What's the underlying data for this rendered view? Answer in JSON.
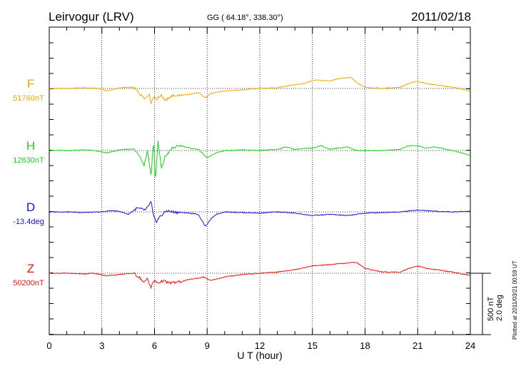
{
  "header": {
    "station": "Leirvogur (LRV)",
    "coords": "GG ( 64.18°, 338.30°)",
    "date": "2011/02/18"
  },
  "side_note": "Plotted at 2011/03/21 00:59 UT",
  "scale": {
    "line1": "500 nT",
    "line2": "2.0 deg"
  },
  "chart_data": {
    "type": "line",
    "xlabel": "U T (hour)",
    "xlim": [
      0,
      24
    ],
    "xticks": [
      "0",
      "3",
      "6",
      "9",
      "12",
      "15",
      "18",
      "21",
      "24"
    ],
    "grid": "dotted vertical every 3 h; dotted baseline per trace",
    "series": [
      {
        "name": "F",
        "baseline": "51760nT",
        "color": "#f0a800",
        "points": [
          [
            0,
            0
          ],
          [
            1,
            0
          ],
          [
            2,
            5
          ],
          [
            2.8,
            0
          ],
          [
            3.3,
            -20
          ],
          [
            4,
            5
          ],
          [
            4.8,
            10
          ],
          [
            5.2,
            -50
          ],
          [
            5.5,
            -80
          ],
          [
            5.7,
            -40
          ],
          [
            5.8,
            -120
          ],
          [
            5.95,
            -60
          ],
          [
            6.1,
            -90
          ],
          [
            6.4,
            -50
          ],
          [
            6.6,
            -100
          ],
          [
            7,
            -60
          ],
          [
            8,
            -50
          ],
          [
            8.5,
            -30
          ],
          [
            8.9,
            -80
          ],
          [
            9.2,
            -40
          ],
          [
            10,
            -20
          ],
          [
            11,
            -10
          ],
          [
            12,
            0
          ],
          [
            13,
            5
          ],
          [
            13.5,
            20
          ],
          [
            14,
            30
          ],
          [
            14.5,
            40
          ],
          [
            15.2,
            70
          ],
          [
            16,
            60
          ],
          [
            16.5,
            80
          ],
          [
            17.2,
            90
          ],
          [
            17.6,
            40
          ],
          [
            18,
            10
          ],
          [
            19,
            0
          ],
          [
            20,
            10
          ],
          [
            20.5,
            40
          ],
          [
            21,
            60
          ],
          [
            21.5,
            40
          ],
          [
            22,
            30
          ],
          [
            23,
            10
          ],
          [
            24,
            -20
          ]
        ]
      },
      {
        "name": "H",
        "baseline": "12630nT",
        "color": "#19d419",
        "points": [
          [
            0,
            0
          ],
          [
            1,
            0
          ],
          [
            2,
            5
          ],
          [
            2.5,
            0
          ],
          [
            3.3,
            -20
          ],
          [
            4,
            5
          ],
          [
            4.8,
            15
          ],
          [
            5.2,
            -50
          ],
          [
            5.4,
            -120
          ],
          [
            5.6,
            0
          ],
          [
            5.8,
            -200
          ],
          [
            5.95,
            80
          ],
          [
            6.05,
            -250
          ],
          [
            6.2,
            70
          ],
          [
            6.4,
            -150
          ],
          [
            6.6,
            -50
          ],
          [
            7,
            20
          ],
          [
            7.5,
            40
          ],
          [
            8,
            20
          ],
          [
            8.5,
            10
          ],
          [
            9,
            -60
          ],
          [
            9.5,
            -20
          ],
          [
            10,
            0
          ],
          [
            11,
            5
          ],
          [
            12,
            0
          ],
          [
            13,
            10
          ],
          [
            13.5,
            30
          ],
          [
            14,
            10
          ],
          [
            15,
            20
          ],
          [
            15.5,
            40
          ],
          [
            16,
            10
          ],
          [
            17,
            30
          ],
          [
            17.5,
            0
          ],
          [
            18,
            0
          ],
          [
            19,
            0
          ],
          [
            20,
            10
          ],
          [
            20.5,
            40
          ],
          [
            21,
            40
          ],
          [
            21.5,
            20
          ],
          [
            22,
            30
          ],
          [
            23,
            0
          ],
          [
            24,
            -40
          ]
        ]
      },
      {
        "name": "D",
        "baseline": "-13.4deg",
        "color": "#1414d4",
        "points": [
          [
            0,
            0
          ],
          [
            1,
            0
          ],
          [
            2,
            -5
          ],
          [
            3,
            0
          ],
          [
            3.5,
            10
          ],
          [
            4,
            5
          ],
          [
            4.5,
            -20
          ],
          [
            5,
            30
          ],
          [
            5.5,
            15
          ],
          [
            5.8,
            80
          ],
          [
            5.95,
            -40
          ],
          [
            6.1,
            -80
          ],
          [
            6.3,
            -40
          ],
          [
            6.7,
            10
          ],
          [
            7,
            0
          ],
          [
            8,
            -10
          ],
          [
            8.5,
            -20
          ],
          [
            8.9,
            -120
          ],
          [
            9.2,
            -60
          ],
          [
            9.5,
            -20
          ],
          [
            10,
            0
          ],
          [
            11,
            -5
          ],
          [
            12,
            -10
          ],
          [
            13,
            0
          ],
          [
            14,
            -10
          ],
          [
            15,
            -30
          ],
          [
            16,
            -20
          ],
          [
            17,
            -30
          ],
          [
            18,
            -10
          ],
          [
            19,
            -5
          ],
          [
            20,
            0
          ],
          [
            21,
            15
          ],
          [
            22,
            5
          ],
          [
            23,
            0
          ],
          [
            24,
            5
          ]
        ]
      },
      {
        "name": "Z",
        "baseline": "50200nT",
        "color": "#e81414",
        "points": [
          [
            0,
            0
          ],
          [
            1,
            0
          ],
          [
            2,
            -5
          ],
          [
            2.5,
            0
          ],
          [
            3.3,
            -20
          ],
          [
            4,
            -10
          ],
          [
            4.8,
            0
          ],
          [
            5.2,
            -40
          ],
          [
            5.4,
            -80
          ],
          [
            5.6,
            -40
          ],
          [
            5.8,
            -120
          ],
          [
            5.95,
            -60
          ],
          [
            6.2,
            -80
          ],
          [
            6.5,
            -60
          ],
          [
            6.8,
            -80
          ],
          [
            7.5,
            -70
          ],
          [
            8,
            -50
          ],
          [
            8.5,
            -40
          ],
          [
            8.8,
            -30
          ],
          [
            9.2,
            -60
          ],
          [
            10,
            -30
          ],
          [
            11,
            -10
          ],
          [
            12,
            0
          ],
          [
            13,
            10
          ],
          [
            13.5,
            20
          ],
          [
            14,
            30
          ],
          [
            15,
            60
          ],
          [
            16,
            70
          ],
          [
            17.5,
            90
          ],
          [
            18,
            40
          ],
          [
            19,
            10
          ],
          [
            20,
            10
          ],
          [
            20.5,
            40
          ],
          [
            21,
            60
          ],
          [
            21.5,
            40
          ],
          [
            22,
            30
          ],
          [
            23,
            10
          ],
          [
            24,
            -20
          ]
        ]
      }
    ]
  }
}
